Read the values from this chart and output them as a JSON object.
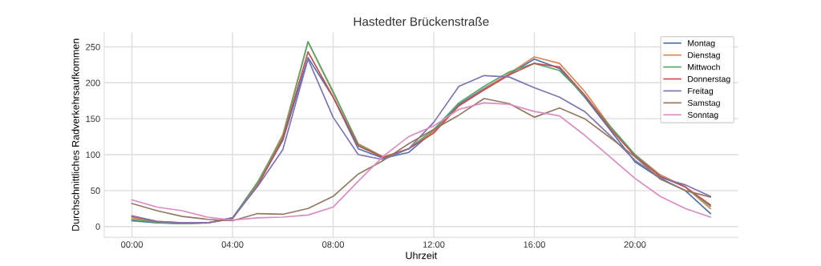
{
  "chart_data": {
    "type": "line",
    "title": "Hastedter Brückenstraße",
    "xlabel": "Uhrzeit",
    "ylabel": "Durchschnittliches Radverkehrsaufkommen",
    "x": [
      0,
      1,
      2,
      3,
      4,
      5,
      6,
      7,
      8,
      9,
      10,
      11,
      12,
      13,
      14,
      15,
      16,
      17,
      18,
      19,
      20,
      21,
      22,
      23
    ],
    "xlim": [
      -1.1,
      24.1
    ],
    "xticks": [
      {
        "value": 0,
        "label": "00:00"
      },
      {
        "value": 4,
        "label": "04:00"
      },
      {
        "value": 8,
        "label": "08:00"
      },
      {
        "value": 12,
        "label": "12:00"
      },
      {
        "value": 16,
        "label": "16:00"
      },
      {
        "value": 20,
        "label": "20:00"
      }
    ],
    "ylim": [
      -15,
      270
    ],
    "yticks": [
      0,
      50,
      100,
      150,
      200,
      250
    ],
    "grid": true,
    "legend": "top right",
    "marker": "none",
    "line_style": "solid",
    "series": [
      {
        "name": "Montag",
        "color": "#4c72b0",
        "values": [
          8,
          5,
          4,
          5,
          12,
          58,
          120,
          235,
          180,
          108,
          95,
          103,
          133,
          170,
          192,
          212,
          233,
          220,
          180,
          135,
          90,
          67,
          50,
          18
        ]
      },
      {
        "name": "Dienstag",
        "color": "#dd8452",
        "values": [
          12,
          6,
          4,
          5,
          11,
          60,
          128,
          257,
          186,
          115,
          97,
          108,
          132,
          168,
          191,
          213,
          236,
          227,
          188,
          140,
          100,
          72,
          55,
          25
        ]
      },
      {
        "name": "Mittwoch",
        "color": "#55a868",
        "values": [
          10,
          6,
          4,
          5,
          12,
          62,
          125,
          257,
          188,
          114,
          96,
          108,
          135,
          172,
          195,
          215,
          227,
          217,
          182,
          140,
          100,
          70,
          55,
          28
        ]
      },
      {
        "name": "Donnerstag",
        "color": "#c44e52",
        "values": [
          14,
          7,
          5,
          5,
          11,
          57,
          122,
          243,
          180,
          112,
          96,
          108,
          130,
          168,
          190,
          211,
          227,
          222,
          183,
          137,
          98,
          70,
          55,
          30
        ]
      },
      {
        "name": "Freitag",
        "color": "#8172b3",
        "values": [
          15,
          7,
          5,
          5,
          12,
          56,
          107,
          233,
          152,
          100,
          93,
          108,
          145,
          195,
          210,
          208,
          193,
          180,
          160,
          127,
          92,
          68,
          58,
          42
        ]
      },
      {
        "name": "Samstag",
        "color": "#937860",
        "values": [
          32,
          22,
          14,
          10,
          8,
          18,
          17,
          25,
          42,
          73,
          92,
          115,
          135,
          155,
          178,
          171,
          152,
          165,
          150,
          124,
          97,
          66,
          50,
          41
        ]
      },
      {
        "name": "Sonntag",
        "color": "#da8bc3",
        "values": [
          37,
          27,
          22,
          13,
          9,
          12,
          13,
          16,
          27,
          63,
          98,
          125,
          140,
          163,
          172,
          170,
          160,
          154,
          127,
          97,
          67,
          42,
          25,
          13
        ]
      }
    ]
  }
}
